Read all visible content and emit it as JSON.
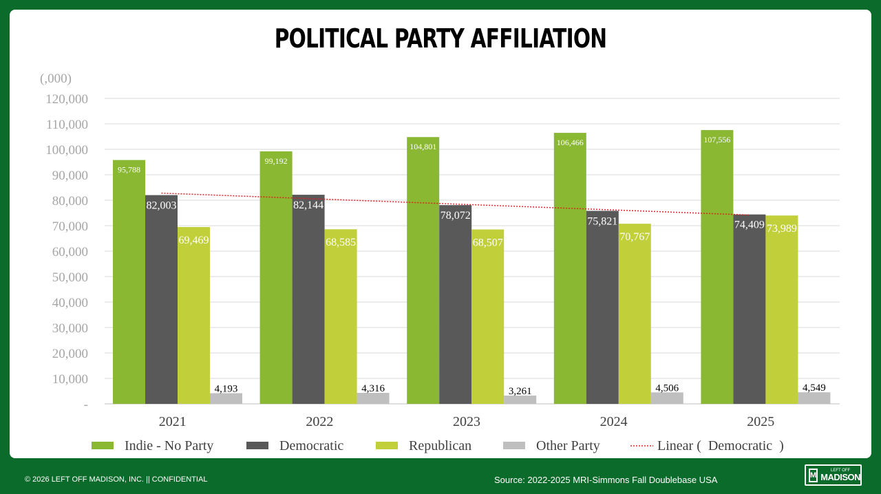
{
  "title": "POLITICAL PARTY AFFILIATION",
  "footer": {
    "copyright": "© 2026 LEFT OFF MADISON, INC.  ||  CONFIDENTIAL",
    "source": "Source: 2022-2025 MRI-Simmons Fall Doublebase USA"
  },
  "logo": {
    "top": "LEFT OFF",
    "bottom": "MADISON",
    "mark": "M"
  },
  "chart_data": {
    "type": "bar",
    "unit_label": "(,000)",
    "categories": [
      "2021",
      "2022",
      "2023",
      "2024",
      "2025"
    ],
    "ylim": [
      0,
      120000
    ],
    "yticks": [
      0,
      10000,
      20000,
      30000,
      40000,
      50000,
      60000,
      70000,
      80000,
      90000,
      100000,
      110000,
      120000
    ],
    "ytick_labels": [
      "-",
      "10,000",
      "20,000",
      "30,000",
      "40,000",
      "50,000",
      "60,000",
      "70,000",
      "80,000",
      "90,000",
      "100,000",
      "110,000",
      "120,000"
    ],
    "grid": true,
    "legend_position": "bottom",
    "series": [
      {
        "name": "Indie - No Party",
        "color": "#8ab833",
        "values": [
          95788,
          99192,
          104801,
          106466,
          107556
        ],
        "labels": [
          "95,788",
          "99,192",
          "104,801",
          "106,466",
          "107,556"
        ]
      },
      {
        "name": "Democratic",
        "color": "#595959",
        "values": [
          82003,
          82144,
          78072,
          75821,
          74409
        ],
        "labels": [
          "82,003",
          "82,144",
          "78,072",
          "75,821",
          "74,409"
        ]
      },
      {
        "name": "Republican",
        "color": "#c0cf3a",
        "values": [
          69469,
          68585,
          68507,
          70767,
          73989
        ],
        "labels": [
          "69,469",
          "68,585",
          "68,507",
          "70,767",
          "73,989"
        ]
      },
      {
        "name": "Other Party",
        "color": "#bfbfbf",
        "values": [
          4193,
          4316,
          3261,
          4506,
          4549
        ],
        "labels": [
          "4,193",
          "4,316",
          "3,261",
          "4,506",
          "4,549"
        ]
      }
    ],
    "trendline": {
      "name": "Linear (  Democratic  )",
      "series": "Democratic",
      "type": "linear",
      "color": "#e02020"
    }
  }
}
